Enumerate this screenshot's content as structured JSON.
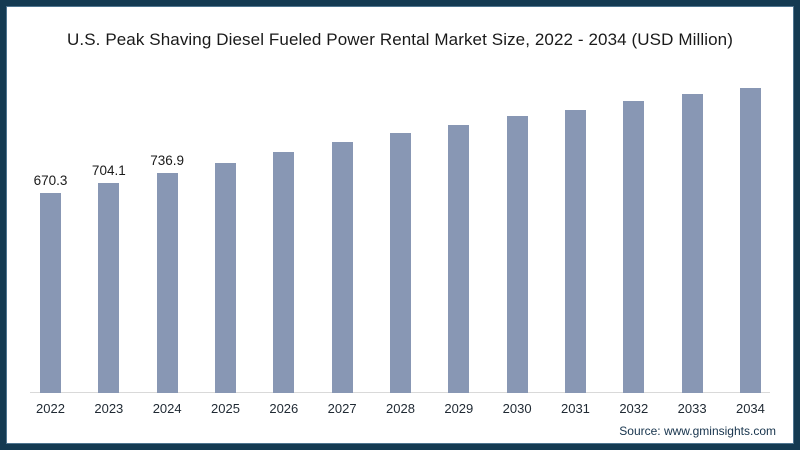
{
  "frame": {
    "border_color": "#143a52",
    "background_color": "#ffffff"
  },
  "chart_data": {
    "type": "bar",
    "title": "U.S. Peak Shaving Diesel Fueled Power Rental Market Size, 2022 - 2034 (USD Million)",
    "categories": [
      "2022",
      "2023",
      "2024",
      "2025",
      "2026",
      "2027",
      "2028",
      "2029",
      "2030",
      "2031",
      "2032",
      "2033",
      "2034"
    ],
    "values": [
      670.3,
      704.1,
      736.9,
      773,
      810,
      841,
      872,
      900,
      929,
      950,
      980,
      1003,
      1025
    ],
    "data_labels": [
      "670.3",
      "704.1",
      "736.9",
      "",
      "",
      "",
      "",
      "",
      "",
      "",
      "",
      "",
      ""
    ],
    "xlabel": "",
    "ylabel": "",
    "ylim": [
      0,
      1050
    ],
    "grid": false,
    "legend": false,
    "bar_color": "#8897b4",
    "axis_line_color": "#d9d9d9",
    "value_label_color": "#1a1a1a",
    "tick_label_color": "#1f2933"
  },
  "source": {
    "label": "Source: www.gminsights.com"
  }
}
